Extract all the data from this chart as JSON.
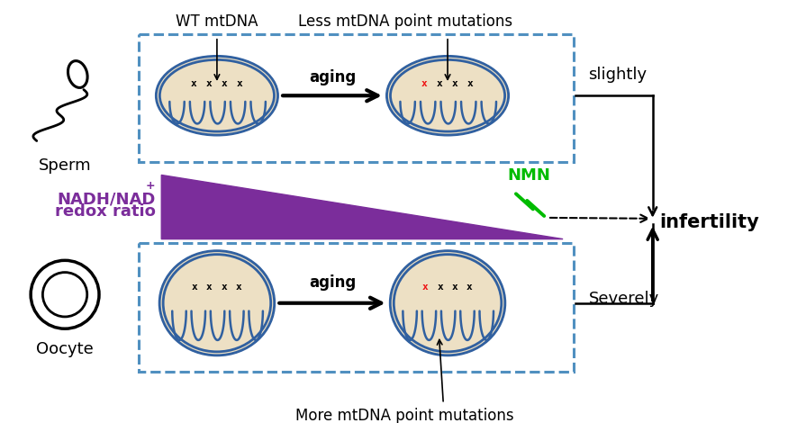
{
  "background_color": "#ffffff",
  "sperm_label": "Sperm",
  "oocyte_label": "Oocyte",
  "wt_mtdna_label": "WT mtDNA",
  "less_mutation_label": "Less mtDNA point mutations",
  "more_mutation_label": "More mtDNA point mutations",
  "aging_label": "aging",
  "slightly_label": "slightly",
  "severely_label": "Severely",
  "infertility_label": "infertility",
  "nmn_label": "NMN",
  "nadh_line1": "NADH/NAD",
  "nadh_sup": "+",
  "nadh_line2": "redox ratio",
  "purple_color": "#7B2D9B",
  "green_color": "#00BB00",
  "blue_dark": "#2B5FA0",
  "blue_mid": "#4080C0",
  "red_color": "#EE1111",
  "dashed_box_color": "#5090C0",
  "mito_fill": "#EDE0C4",
  "mito_outer": "#3060A0",
  "mito_inner": "#3060A0",
  "black": "#111111"
}
